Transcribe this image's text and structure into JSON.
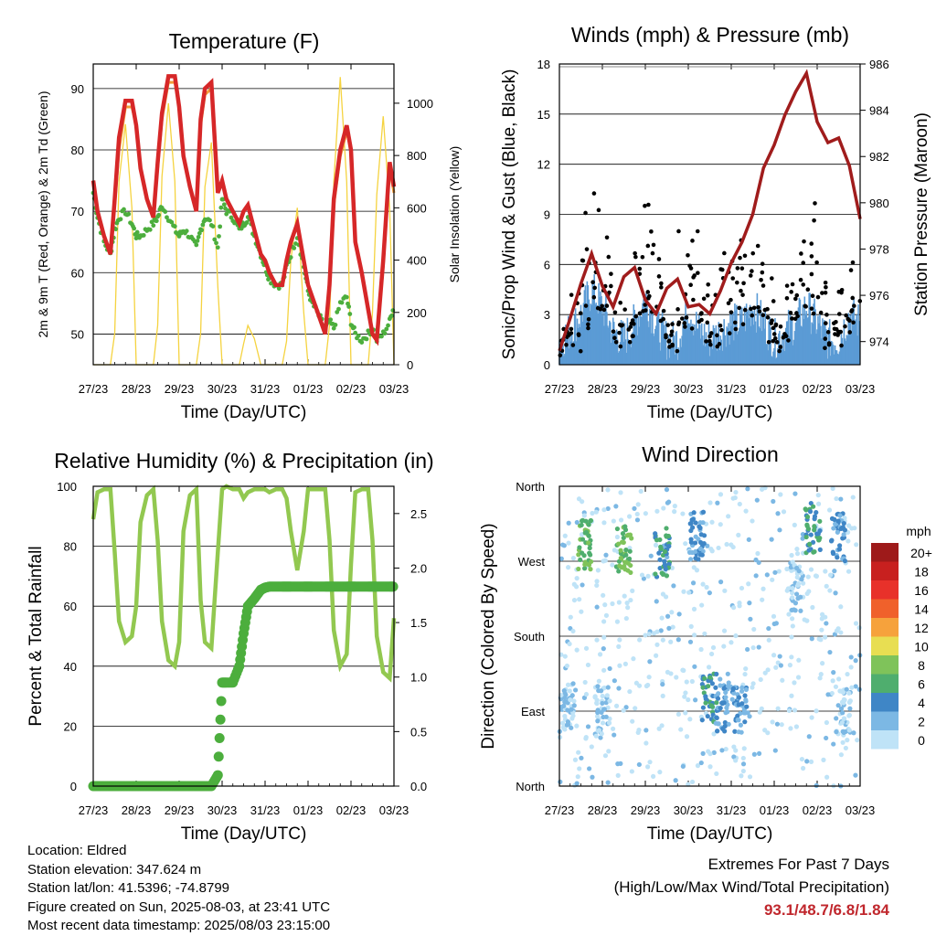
{
  "x_ticks": [
    "27/23",
    "28/23",
    "29/23",
    "30/23",
    "31/23",
    "01/23",
    "02/23",
    "03/23"
  ],
  "palette": {
    "temp_red": "#d62728",
    "temp_orange": "#f39c3a",
    "dewpoint_green": "#4cae3d",
    "solar_yellow": "#f5d340",
    "wind_blue": "#5b9bd5",
    "gust_black": "#000000",
    "pressure_maroon": "#a01c1c",
    "rh_green": "#92c850",
    "rain_green": "#4cae3d"
  },
  "speed_legend": {
    "unit": "mph",
    "labels": [
      "20+",
      "18",
      "16",
      "14",
      "12",
      "10",
      "8",
      "6",
      "4",
      "2",
      "0"
    ],
    "colors": [
      "#9e1a1a",
      "#c8201f",
      "#e8312a",
      "#f0612b",
      "#f6a23c",
      "#e8de52",
      "#7fc35a",
      "#4fae6e",
      "#3f86c6",
      "#7cb8e4",
      "#bfe3f7"
    ]
  },
  "chart_data": [
    {
      "type": "line",
      "title": "Temperature (F)",
      "xlabel": "Time (Day/UTC)",
      "ylabel": "2m & 9m T (Red, Orange) & 2m Td (Green)",
      "y2label": "Solar Insolation (Yellow)",
      "ylim": [
        45,
        94
      ],
      "y2lim": [
        0,
        1150
      ],
      "yticks": [
        "50",
        "60",
        "70",
        "80",
        "90"
      ],
      "y2ticks": [
        "0",
        "200",
        "400",
        "600",
        "800",
        "1000"
      ],
      "x": [
        0,
        0.1,
        0.25,
        0.4,
        0.5,
        0.6,
        0.75,
        0.9,
        1.0,
        1.1,
        1.25,
        1.4,
        1.5,
        1.6,
        1.75,
        1.9,
        2.0,
        2.1,
        2.25,
        2.4,
        2.5,
        2.6,
        2.75,
        2.9,
        3.0,
        3.1,
        3.25,
        3.4,
        3.5,
        3.6,
        3.75,
        3.9,
        4.0,
        4.1,
        4.25,
        4.4,
        4.5,
        4.6,
        4.75,
        4.9,
        5.0,
        5.1,
        5.25,
        5.4,
        5.5,
        5.6,
        5.75,
        5.9,
        6.0,
        6.1,
        6.25,
        6.4,
        6.5,
        6.6,
        6.75,
        6.9,
        7.0
      ],
      "series": [
        {
          "name": "2m T",
          "values": [
            75,
            70,
            66,
            63,
            72,
            82,
            88,
            88,
            84,
            77,
            72,
            69,
            78,
            86,
            92,
            92,
            87,
            79,
            74,
            70,
            85,
            90,
            91,
            73,
            75,
            72,
            70,
            68,
            70,
            71,
            67,
            63,
            62,
            60,
            58,
            58,
            62,
            65,
            68,
            62,
            58,
            56,
            53,
            50,
            58,
            72,
            80,
            84,
            80,
            65,
            60,
            54,
            50,
            49,
            62,
            78,
            74
          ]
        },
        {
          "name": "9m T",
          "values": [
            75,
            70,
            66,
            63,
            71,
            80,
            87,
            87,
            84,
            77,
            72,
            69,
            77,
            85,
            91,
            91,
            87,
            79,
            74,
            70,
            84,
            89,
            90,
            73,
            75,
            72,
            70,
            68,
            70,
            71,
            67,
            63,
            62,
            60,
            58,
            58,
            62,
            65,
            68,
            62,
            58,
            56,
            53,
            50,
            58,
            71,
            79,
            83,
            80,
            65,
            60,
            54,
            50,
            49,
            61,
            77,
            73
          ]
        },
        {
          "name": "2m Td",
          "values": [
            73,
            69,
            65,
            63,
            67,
            69,
            70,
            68,
            66,
            66,
            67,
            68,
            69,
            71,
            69,
            67,
            66,
            67,
            66,
            64,
            67,
            69,
            68,
            64,
            72,
            70,
            69,
            67,
            68,
            69,
            66,
            63,
            61,
            59,
            58,
            58,
            61,
            63,
            66,
            61,
            57,
            55,
            53,
            51,
            52,
            51,
            55,
            56,
            52,
            50,
            49,
            50,
            51,
            49,
            50,
            52,
            55
          ]
        },
        {
          "name": "Solar",
          "axis": "y2",
          "values": [
            0,
            0,
            0,
            0,
            120,
            700,
            920,
            600,
            0,
            0,
            0,
            0,
            150,
            720,
            1000,
            700,
            0,
            0,
            0,
            0,
            120,
            680,
            850,
            300,
            0,
            0,
            0,
            0,
            80,
            150,
            100,
            0,
            0,
            0,
            0,
            0,
            90,
            400,
            600,
            200,
            0,
            0,
            0,
            0,
            150,
            700,
            1100,
            700,
            0,
            0,
            0,
            0,
            200,
            650,
            950,
            600,
            0
          ]
        }
      ]
    },
    {
      "type": "line",
      "title": "Winds (mph) & Pressure (mb)",
      "xlabel": "Time (Day/UTC)",
      "ylabel": "Sonic/Prop Wind & Gust (Blue, Black)",
      "y2label": "Station Pressure (Maroon)",
      "ylim": [
        0,
        18
      ],
      "y2lim": [
        973.0,
        986.0
      ],
      "yticks": [
        "0",
        "3",
        "6",
        "9",
        "12",
        "15",
        "18"
      ],
      "y2ticks": [
        "974",
        "976",
        "978",
        "980",
        "982",
        "984",
        "986"
      ],
      "x": [
        0,
        0.25,
        0.5,
        0.75,
        1.0,
        1.25,
        1.5,
        1.75,
        2.0,
        2.25,
        2.5,
        2.75,
        3.0,
        3.25,
        3.5,
        3.75,
        4.0,
        4.25,
        4.5,
        4.75,
        5.0,
        5.25,
        5.5,
        5.75,
        6.0,
        6.25,
        6.5,
        6.75,
        7.0
      ],
      "series": [
        {
          "name": "Wind",
          "values": [
            1,
            1.5,
            2.5,
            4,
            3,
            1.5,
            1,
            2,
            3.5,
            2,
            1,
            1,
            3,
            1.5,
            1,
            1.5,
            2,
            2,
            3,
            2,
            1,
            1.5,
            2,
            3,
            2,
            1,
            1,
            2.5,
            2
          ]
        },
        {
          "name": "Gust",
          "values": [
            1,
            2,
            4,
            9,
            7,
            3,
            2,
            4,
            10,
            5,
            2,
            2,
            7,
            4,
            2,
            4,
            6,
            5,
            6,
            5,
            2,
            3,
            5,
            8,
            6,
            2,
            2,
            5,
            4
          ]
        },
        {
          "name": "Pressure",
          "axis": "y2",
          "values": [
            973.6,
            975,
            976.5,
            977.8,
            976.4,
            975.5,
            976.8,
            977.2,
            975.8,
            975.2,
            976.3,
            976.7,
            975.5,
            975.6,
            975.2,
            976.2,
            977.4,
            978.3,
            979.5,
            981.5,
            982.5,
            983.8,
            984.8,
            985.6,
            983.5,
            982.6,
            982.8,
            981.6,
            979.3
          ]
        }
      ]
    },
    {
      "type": "line",
      "title": "Relative Humidity (%) & Precipitation (in)",
      "xlabel": "Time (Day/UTC)",
      "ylabel": "Percent & Total Rainfall",
      "ylim": [
        0,
        100
      ],
      "y2lim": [
        0,
        2.75
      ],
      "yticks": [
        "0",
        "20",
        "40",
        "60",
        "80",
        "100"
      ],
      "y2ticks": [
        "0.0",
        "0.5",
        "1.0",
        "1.5",
        "2.0",
        "2.5"
      ],
      "x": [
        0,
        0.1,
        0.25,
        0.4,
        0.5,
        0.6,
        0.75,
        0.9,
        1.0,
        1.1,
        1.25,
        1.4,
        1.5,
        1.6,
        1.75,
        1.9,
        2.0,
        2.1,
        2.25,
        2.4,
        2.5,
        2.6,
        2.75,
        2.9,
        3.0,
        3.1,
        3.25,
        3.4,
        3.5,
        3.6,
        3.75,
        3.9,
        4.0,
        4.1,
        4.25,
        4.4,
        4.5,
        4.6,
        4.75,
        4.9,
        5.0,
        5.1,
        5.25,
        5.4,
        5.5,
        5.6,
        5.75,
        5.9,
        6.0,
        6.1,
        6.25,
        6.4,
        6.5,
        6.6,
        6.75,
        6.9,
        7.0
      ],
      "series": [
        {
          "name": "RH",
          "values": [
            89,
            98,
            99,
            99,
            78,
            55,
            48,
            50,
            60,
            88,
            97,
            99,
            82,
            55,
            42,
            40,
            48,
            85,
            97,
            99,
            62,
            48,
            46,
            78,
            99,
            100,
            99,
            99,
            96,
            98,
            99,
            99,
            99,
            98,
            99,
            99,
            96,
            85,
            72,
            85,
            99,
            99,
            99,
            99,
            82,
            52,
            40,
            44,
            74,
            98,
            99,
            99,
            82,
            50,
            38,
            36,
            56
          ]
        },
        {
          "name": "Total Rainfall",
          "axis": "y2",
          "values": [
            0,
            0,
            0,
            0,
            0,
            0,
            0,
            0,
            0,
            0,
            0,
            0,
            0,
            0,
            0,
            0,
            0,
            0,
            0,
            0,
            0,
            0,
            0,
            0.1,
            0.95,
            0.95,
            0.95,
            1.1,
            1.4,
            1.65,
            1.72,
            1.8,
            1.82,
            1.83,
            1.83,
            1.83,
            1.83,
            1.83,
            1.83,
            1.83,
            1.83,
            1.83,
            1.83,
            1.83,
            1.83,
            1.83,
            1.83,
            1.83,
            1.83,
            1.83,
            1.83,
            1.83,
            1.83,
            1.83,
            1.83,
            1.83,
            1.83
          ]
        }
      ]
    },
    {
      "type": "scatter",
      "title": "Wind Direction",
      "xlabel": "Time (Day/UTC)",
      "ylabel": "Direction (Colored By Speed)",
      "ylim": [
        0,
        360
      ],
      "yticks": [
        "North",
        "East",
        "South",
        "West",
        "North"
      ],
      "clusters": [
        {
          "x": 0.6,
          "dir": 290,
          "speed": 4
        },
        {
          "x": 1.5,
          "dir": 285,
          "speed": 4
        },
        {
          "x": 2.4,
          "dir": 280,
          "speed": 3
        },
        {
          "x": 3.2,
          "dir": 300,
          "speed": 2
        },
        {
          "x": 3.5,
          "dir": 105,
          "speed": 3
        },
        {
          "x": 3.8,
          "dir": 95,
          "speed": 2
        },
        {
          "x": 4.2,
          "dir": 90,
          "speed": 2
        },
        {
          "x": 5.5,
          "dir": 240,
          "speed": 1
        },
        {
          "x": 5.9,
          "dir": 310,
          "speed": 3
        },
        {
          "x": 6.5,
          "dir": 300,
          "speed": 2
        },
        {
          "x": 6.6,
          "dir": 90,
          "speed": 1
        },
        {
          "x": 1.0,
          "dir": 90,
          "speed": 1
        },
        {
          "x": 0.2,
          "dir": 95,
          "speed": 1
        }
      ]
    }
  ],
  "info": {
    "location": "Location: Eldred",
    "elevation": "Station elevation: 347.624 m",
    "latlon": "Station lat/lon: 41.5396; -74.8799",
    "created": "Figure created on Sun, 2025-08-03, at 23:41 UTC",
    "recent": "Most recent data timestamp: 2025/08/03 23:15:00"
  },
  "extremes": {
    "title": "Extremes For Past 7 Days",
    "subtitle": "(High/Low/Max Wind/Total Precipitation)",
    "values": "93.1/48.7/6.8/1.84"
  }
}
